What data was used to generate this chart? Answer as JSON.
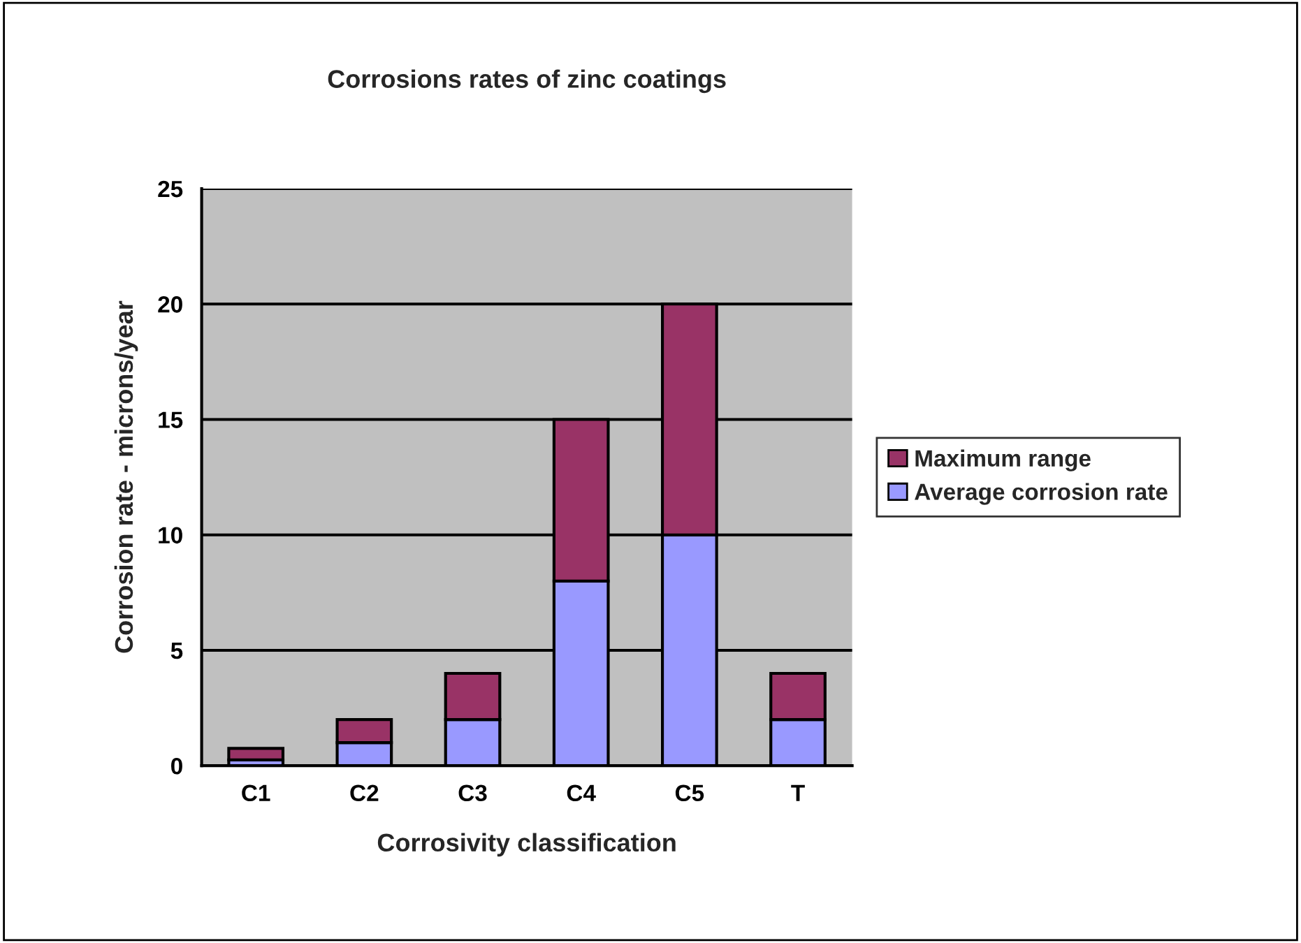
{
  "chart_data": {
    "type": "bar",
    "title": "Corrosions rates of zinc coatings",
    "xlabel": "Corrosivity classification",
    "ylabel": "Corrosion rate - microns/year",
    "categories": [
      "C1",
      "C2",
      "C3",
      "C4",
      "C5",
      "T"
    ],
    "stacked": true,
    "series": [
      {
        "name": "Average corrosion rate",
        "color": "#9999ff",
        "values": [
          0.25,
          1,
          2,
          8,
          10,
          2
        ]
      },
      {
        "name": "Maximum range",
        "color": "#993366",
        "values": [
          0.5,
          1,
          2,
          7,
          10,
          2
        ]
      }
    ],
    "ylim": [
      0,
      25
    ],
    "yticks": [
      0,
      5,
      10,
      15,
      20,
      25
    ],
    "grid": "y",
    "legend": "right"
  }
}
